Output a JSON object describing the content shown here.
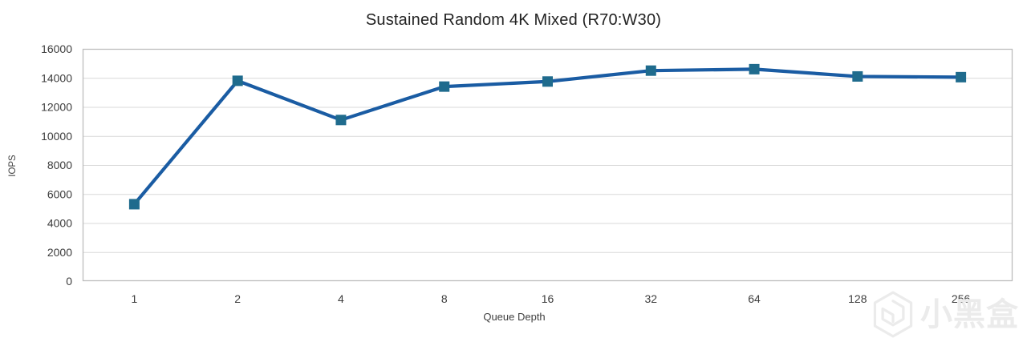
{
  "chart_data": {
    "type": "line",
    "title": "Sustained Random 4K Mixed (R70:W30)",
    "xlabel": "Queue Depth",
    "ylabel": "IOPS",
    "categories": [
      "1",
      "2",
      "4",
      "8",
      "16",
      "32",
      "64",
      "128",
      "256"
    ],
    "series": [
      {
        "name": "IOPS",
        "values": [
          5300,
          13800,
          11100,
          13400,
          13750,
          14500,
          14600,
          14100,
          14050
        ]
      }
    ],
    "ylim": [
      0,
      16000
    ],
    "ytick_step": 2000,
    "yticks": [
      "0",
      "2000",
      "4000",
      "6000",
      "8000",
      "10000",
      "12000",
      "14000",
      "16000"
    ],
    "grid": true,
    "legend": false,
    "marker_shape": "square",
    "line_color": "#1a5ca3",
    "marker_color": "#1f6b8d",
    "gridline_color": "#d9d9d9",
    "border_color": "#bdbdbd",
    "tick_color": "#3d3d3d",
    "title_color": "#222222"
  },
  "watermark": {
    "text": "小黑盒",
    "icon": "xiaoheihe-hexagon-logo",
    "color": "#ebebeb"
  }
}
